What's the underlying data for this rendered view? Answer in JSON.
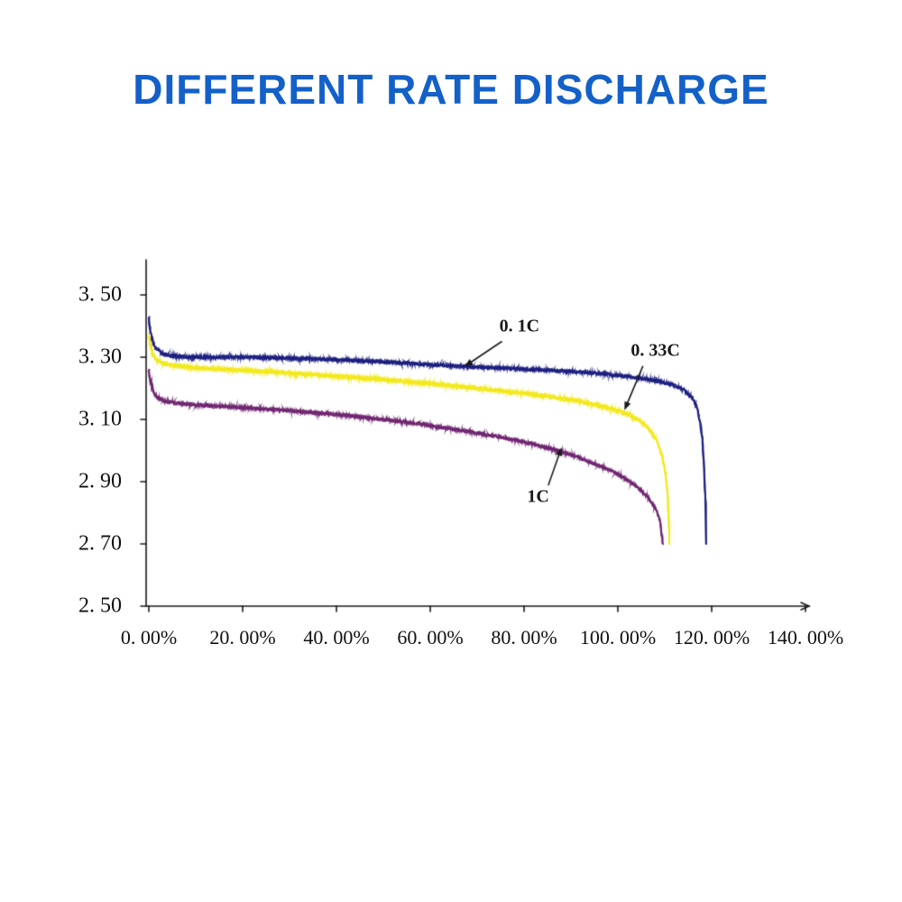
{
  "title": "DIFFERENT RATE DISCHARGE",
  "colors": {
    "title": "#1360c9",
    "axis": "#1a1a1a",
    "tick_text": "#111111",
    "annotation_text": "#1a1a1a"
  },
  "chart_data": {
    "type": "line",
    "title": "DIFFERENT RATE DISCHARGE",
    "xlabel": "",
    "ylabel": "",
    "xlim": [
      0,
      140
    ],
    "ylim": [
      2.5,
      3.5
    ],
    "grid": false,
    "legend": "none",
    "x_tick_values": [
      0,
      20,
      40,
      60,
      80,
      100,
      120,
      140
    ],
    "x_ticks": [
      "0. 00%",
      "20. 00%",
      "40. 00%",
      "60. 00%",
      "80. 00%",
      "100. 00%",
      "120. 00%",
      "140. 00%"
    ],
    "y_tick_values": [
      2.5,
      2.7,
      2.9,
      3.1,
      3.3,
      3.5
    ],
    "y_ticks": [
      "2. 50",
      "2. 70",
      "2. 90",
      "3. 10",
      "3. 30",
      "3. 50"
    ],
    "series": [
      {
        "name": "1C",
        "color": "#6f2570",
        "points": [
          [
            0,
            3.26
          ],
          [
            0.3,
            3.225
          ],
          [
            0.8,
            3.195
          ],
          [
            1.5,
            3.175
          ],
          [
            3,
            3.16
          ],
          [
            6,
            3.152
          ],
          [
            10,
            3.147
          ],
          [
            20,
            3.138
          ],
          [
            30,
            3.128
          ],
          [
            40,
            3.116
          ],
          [
            50,
            3.1
          ],
          [
            58,
            3.085
          ],
          [
            66,
            3.066
          ],
          [
            74,
            3.046
          ],
          [
            80,
            3.028
          ],
          [
            86,
            3.005
          ],
          [
            91,
            2.982
          ],
          [
            95,
            2.958
          ],
          [
            99,
            2.932
          ],
          [
            102,
            2.906
          ],
          [
            104.5,
            2.878
          ],
          [
            106.5,
            2.848
          ],
          [
            108,
            2.815
          ],
          [
            109,
            2.775
          ],
          [
            109.6,
            2.7
          ]
        ]
      },
      {
        "name": "0. 33C",
        "color": "#f2e91e",
        "points": [
          [
            0,
            3.37
          ],
          [
            0.3,
            3.34
          ],
          [
            0.8,
            3.31
          ],
          [
            1.5,
            3.295
          ],
          [
            3,
            3.28
          ],
          [
            6,
            3.272
          ],
          [
            10,
            3.266
          ],
          [
            20,
            3.258
          ],
          [
            30,
            3.249
          ],
          [
            40,
            3.239
          ],
          [
            50,
            3.228
          ],
          [
            60,
            3.215
          ],
          [
            70,
            3.2
          ],
          [
            80,
            3.184
          ],
          [
            87,
            3.17
          ],
          [
            93,
            3.155
          ],
          [
            98,
            3.138
          ],
          [
            102,
            3.118
          ],
          [
            104.5,
            3.098
          ],
          [
            106.5,
            3.072
          ],
          [
            108.2,
            3.035
          ],
          [
            109.4,
            2.985
          ],
          [
            110.2,
            2.925
          ],
          [
            110.7,
            2.84
          ],
          [
            111,
            2.7
          ]
        ]
      },
      {
        "name": "0. 1C",
        "color": "#1b1d7e",
        "points": [
          [
            0,
            3.425
          ],
          [
            0.3,
            3.38
          ],
          [
            0.8,
            3.35
          ],
          [
            1.5,
            3.33
          ],
          [
            3,
            3.31
          ],
          [
            6,
            3.302
          ],
          [
            10,
            3.3
          ],
          [
            20,
            3.3
          ],
          [
            30,
            3.297
          ],
          [
            40,
            3.292
          ],
          [
            50,
            3.285
          ],
          [
            60,
            3.276
          ],
          [
            70,
            3.268
          ],
          [
            80,
            3.262
          ],
          [
            90,
            3.254
          ],
          [
            96,
            3.248
          ],
          [
            101,
            3.24
          ],
          [
            105,
            3.232
          ],
          [
            109,
            3.222
          ],
          [
            112,
            3.21
          ],
          [
            114,
            3.195
          ],
          [
            115.8,
            3.17
          ],
          [
            116.8,
            3.14
          ],
          [
            117.6,
            3.09
          ],
          [
            118.1,
            3.02
          ],
          [
            118.5,
            2.92
          ],
          [
            118.7,
            2.82
          ],
          [
            118.8,
            2.7
          ]
        ]
      }
    ],
    "annotations": [
      {
        "label": "0. 1C",
        "label_pos": [
          79,
          3.4
        ],
        "arrow_from": [
          75.2,
          3.35
        ],
        "arrow_to": [
          67.3,
          3.27
        ]
      },
      {
        "label": "0. 33C",
        "label_pos": [
          108,
          3.32
        ],
        "arrow_from": [
          105.3,
          3.27
        ],
        "arrow_to": [
          101.4,
          3.13
        ]
      },
      {
        "label": "1C",
        "label_pos": [
          83,
          2.85
        ],
        "arrow_from": [
          85.2,
          2.89
        ],
        "arrow_to": [
          88,
          3.01
        ]
      }
    ]
  }
}
